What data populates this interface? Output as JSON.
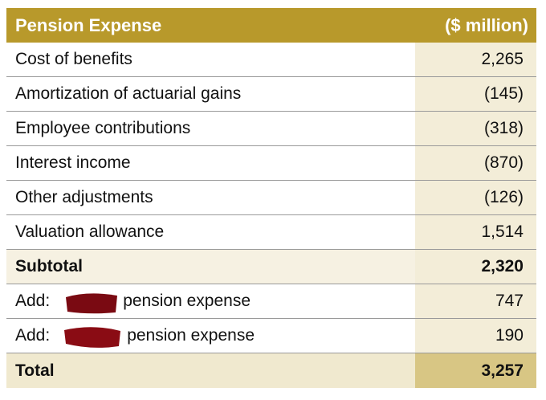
{
  "table": {
    "header": [
      "Pension Expense",
      "($ million)"
    ],
    "rows": [
      {
        "label": "Cost of benefits",
        "value": "2,265"
      },
      {
        "label": "Amortization of actuarial gains",
        "value": "(145)"
      },
      {
        "label": "Employee contributions",
        "value": "(318)"
      },
      {
        "label": "Interest income",
        "value": "(870)"
      },
      {
        "label": "Other adjustments",
        "value": "(126)"
      },
      {
        "label": "Valuation allowance",
        "value": "1,514"
      },
      {
        "label": "Subtotal",
        "value": "2,320",
        "bold": true
      },
      {
        "prefix": "Add:",
        "suffix": "pension expense",
        "value": "747"
      },
      {
        "prefix": "Add:",
        "suffix": "pension expense",
        "value": "190"
      },
      {
        "label": "Total",
        "value": "3,257",
        "bold": true,
        "total": true
      }
    ]
  }
}
